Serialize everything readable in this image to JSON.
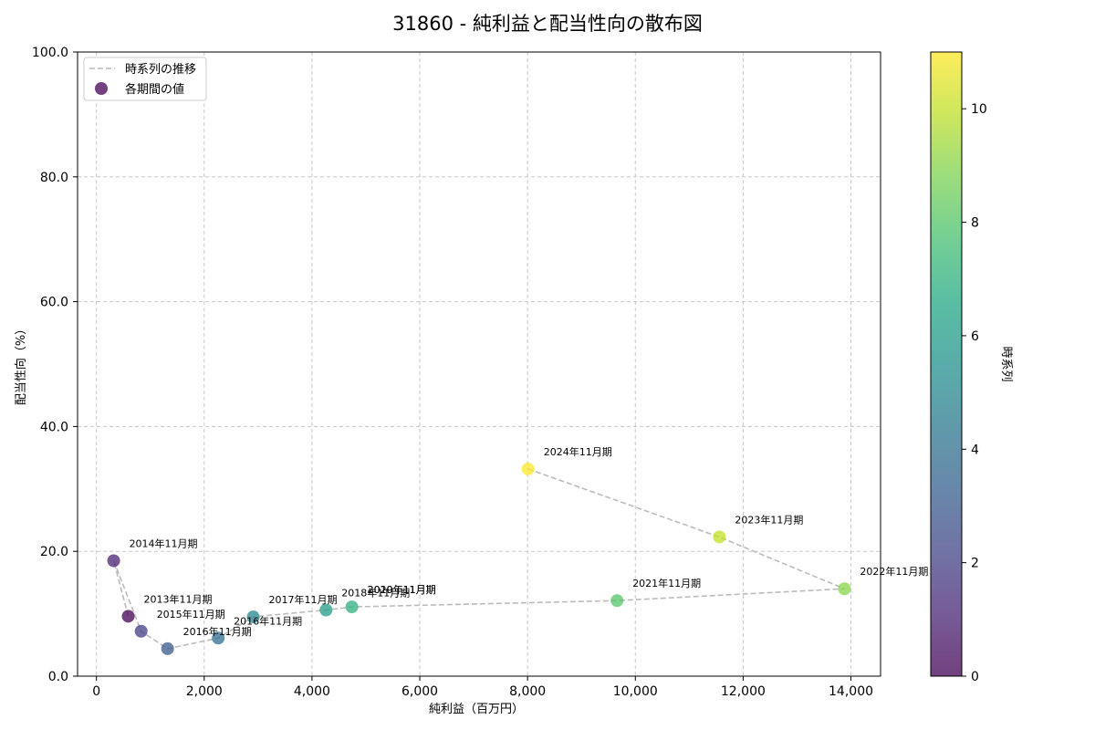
{
  "chart_data": {
    "type": "scatter",
    "title": "31860 - 純利益と配当性向の散布図",
    "xlabel": "純利益（百万円）",
    "ylabel": "配当性向（%）",
    "xlim": [
      -350,
      14550
    ],
    "ylim": [
      0,
      100
    ],
    "xticks": [
      0,
      2000,
      4000,
      6000,
      8000,
      10000,
      12000,
      14000
    ],
    "xtick_labels": [
      "0",
      "2,000",
      "4,000",
      "6,000",
      "8,000",
      "10,000",
      "12,000",
      "14,000"
    ],
    "yticks": [
      0,
      20,
      40,
      60,
      80,
      100
    ],
    "ytick_labels": [
      "0.0",
      "20.0",
      "40.0",
      "60.0",
      "80.0",
      "100.0"
    ],
    "grid": true,
    "legend": {
      "position": "top-left",
      "items": [
        {
          "label": "時系列の推移",
          "kind": "dashed-line"
        },
        {
          "label": "各期間の値",
          "kind": "marker"
        }
      ]
    },
    "colorbar": {
      "label": "時系列",
      "min": 0,
      "max": 11,
      "ticks": [
        0,
        2,
        4,
        6,
        8,
        10
      ],
      "tick_labels": [
        "0",
        "2",
        "4",
        "6",
        "8",
        "10"
      ]
    },
    "points": [
      {
        "label": "2013年11月期",
        "x": 590,
        "y": 9.6,
        "t": 0
      },
      {
        "label": "2014年11月期",
        "x": 320,
        "y": 18.5,
        "t": 1
      },
      {
        "label": "2015年11月期",
        "x": 830,
        "y": 7.2,
        "t": 2
      },
      {
        "label": "2016年11月期",
        "x": 1320,
        "y": 4.4,
        "t": 3
      },
      {
        "label": "2016年11月期",
        "x": 2260,
        "y": 6.1,
        "t": 4
      },
      {
        "label": "2017年11月期",
        "x": 2910,
        "y": 9.5,
        "t": 5
      },
      {
        "label": "2018年11月期",
        "x": 4260,
        "y": 10.6,
        "t": 6
      },
      {
        "label": "2019年11月期",
        "x": 4740,
        "y": 11.1,
        "t": 7
      },
      {
        "label": "2021年11月期",
        "x": 9660,
        "y": 12.1,
        "t": 8
      },
      {
        "label": "2022年11月期",
        "x": 13880,
        "y": 14.0,
        "t": 9
      },
      {
        "label": "2023年11月期",
        "x": 11560,
        "y": 22.3,
        "t": 10
      },
      {
        "label": "2024年11月期",
        "x": 8010,
        "y": 33.2,
        "t": 11
      }
    ],
    "extra_annotations": [
      {
        "label": "2020年11月期",
        "x": 4740,
        "y": 11.1
      }
    ]
  }
}
